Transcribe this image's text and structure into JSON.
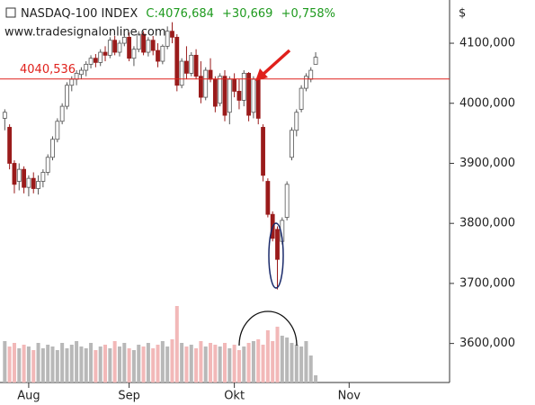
{
  "chart_data": {
    "type": "candlestick",
    "title": "NASDAQ-100 INDEX",
    "quote": "C:4076,684",
    "change": "+30,669",
    "change_pct": "+0,758%",
    "source": "www.tradesignalonline.com",
    "y_unit": "$",
    "up_color": "#ffffff",
    "down_color": "#9a1b1b",
    "up_volume_color": "#b8b8b8",
    "down_volume_color": "#f2b8b8",
    "hline": {
      "value": 4040.536,
      "label": "4040,536",
      "color": "#e0201b"
    },
    "xlim": [
      -1,
      93
    ],
    "xticks": [
      {
        "value": 5,
        "label": "Aug"
      },
      {
        "value": 26,
        "label": "Sep"
      },
      {
        "value": 48,
        "label": "Okt"
      },
      {
        "value": 72,
        "label": "Nov"
      }
    ],
    "ylim": [
      3535,
      4172
    ],
    "yticks": [
      {
        "value": 3600,
        "label": "3600,000"
      },
      {
        "value": 3700,
        "label": "3700,000"
      },
      {
        "value": 3800,
        "label": "3800,000"
      },
      {
        "value": 3900,
        "label": "3900,000"
      },
      {
        "value": 4000,
        "label": "4000,000"
      },
      {
        "value": 4100,
        "label": "4100,000"
      }
    ],
    "candles": [
      {
        "o": 3975,
        "h": 3990,
        "l": 3955,
        "c": 3985
      },
      {
        "o": 3960,
        "h": 3965,
        "l": 3890,
        "c": 3900
      },
      {
        "o": 3900,
        "h": 3905,
        "l": 3850,
        "c": 3865
      },
      {
        "o": 3870,
        "h": 3900,
        "l": 3855,
        "c": 3890
      },
      {
        "o": 3890,
        "h": 3895,
        "l": 3850,
        "c": 3860
      },
      {
        "o": 3860,
        "h": 3880,
        "l": 3845,
        "c": 3875
      },
      {
        "o": 3875,
        "h": 3885,
        "l": 3850,
        "c": 3858
      },
      {
        "o": 3858,
        "h": 3880,
        "l": 3848,
        "c": 3870
      },
      {
        "o": 3870,
        "h": 3890,
        "l": 3860,
        "c": 3885
      },
      {
        "o": 3885,
        "h": 3915,
        "l": 3880,
        "c": 3910
      },
      {
        "o": 3910,
        "h": 3945,
        "l": 3905,
        "c": 3940
      },
      {
        "o": 3940,
        "h": 3975,
        "l": 3935,
        "c": 3970
      },
      {
        "o": 3970,
        "h": 4000,
        "l": 3965,
        "c": 3995
      },
      {
        "o": 3995,
        "h": 4035,
        "l": 3990,
        "c": 4030
      },
      {
        "o": 4030,
        "h": 4045,
        "l": 4020,
        "c": 4040
      },
      {
        "o": 4040,
        "h": 4055,
        "l": 4030,
        "c": 4050
      },
      {
        "o": 4048,
        "h": 4060,
        "l": 4040,
        "c": 4055
      },
      {
        "o": 4055,
        "h": 4070,
        "l": 4045,
        "c": 4065
      },
      {
        "o": 4065,
        "h": 4080,
        "l": 4058,
        "c": 4075
      },
      {
        "o": 4075,
        "h": 4082,
        "l": 4060,
        "c": 4068
      },
      {
        "o": 4068,
        "h": 4090,
        "l": 4062,
        "c": 4085
      },
      {
        "o": 4085,
        "h": 4095,
        "l": 4070,
        "c": 4080
      },
      {
        "o": 4080,
        "h": 4110,
        "l": 4075,
        "c": 4105
      },
      {
        "o": 4105,
        "h": 4112,
        "l": 4080,
        "c": 4085
      },
      {
        "o": 4085,
        "h": 4105,
        "l": 4078,
        "c": 4100
      },
      {
        "o": 4100,
        "h": 4115,
        "l": 4095,
        "c": 4110
      },
      {
        "o": 4110,
        "h": 4118,
        "l": 4070,
        "c": 4075
      },
      {
        "o": 4075,
        "h": 4095,
        "l": 4062,
        "c": 4090
      },
      {
        "o": 4090,
        "h": 4120,
        "l": 4085,
        "c": 4115
      },
      {
        "o": 4115,
        "h": 4120,
        "l": 4080,
        "c": 4085
      },
      {
        "o": 4085,
        "h": 4110,
        "l": 4078,
        "c": 4105
      },
      {
        "o": 4105,
        "h": 4112,
        "l": 4080,
        "c": 4088
      },
      {
        "o": 4088,
        "h": 4100,
        "l": 4060,
        "c": 4070
      },
      {
        "o": 4070,
        "h": 4098,
        "l": 4065,
        "c": 4095
      },
      {
        "o": 4095,
        "h": 4128,
        "l": 4090,
        "c": 4120
      },
      {
        "o": 4120,
        "h": 4135,
        "l": 4100,
        "c": 4110
      },
      {
        "o": 4110,
        "h": 4115,
        "l": 4020,
        "c": 4030
      },
      {
        "o": 4030,
        "h": 4075,
        "l": 4025,
        "c": 4070
      },
      {
        "o": 4070,
        "h": 4095,
        "l": 4040,
        "c": 4050
      },
      {
        "o": 4050,
        "h": 4085,
        "l": 4045,
        "c": 4080
      },
      {
        "o": 4080,
        "h": 4090,
        "l": 4040,
        "c": 4045
      },
      {
        "o": 4045,
        "h": 4070,
        "l": 4000,
        "c": 4010
      },
      {
        "o": 4010,
        "h": 4060,
        "l": 4005,
        "c": 4055
      },
      {
        "o": 4055,
        "h": 4075,
        "l": 4035,
        "c": 4040
      },
      {
        "o": 4040,
        "h": 4045,
        "l": 3985,
        "c": 3995
      },
      {
        "o": 4000,
        "h": 4050,
        "l": 3995,
        "c": 4045
      },
      {
        "o": 4045,
        "h": 4055,
        "l": 3970,
        "c": 3980
      },
      {
        "o": 3985,
        "h": 4045,
        "l": 3965,
        "c": 4040
      },
      {
        "o": 4040,
        "h": 4050,
        "l": 4010,
        "c": 4020
      },
      {
        "o": 4020,
        "h": 4040,
        "l": 3990,
        "c": 4005
      },
      {
        "o": 4005,
        "h": 4055,
        "l": 3995,
        "c": 4050
      },
      {
        "o": 4050,
        "h": 4052,
        "l": 3970,
        "c": 3980
      },
      {
        "o": 3985,
        "h": 4045,
        "l": 3975,
        "c": 4040
      },
      {
        "o": 4040,
        "h": 4045,
        "l": 3965,
        "c": 3975
      },
      {
        "o": 3960,
        "h": 3965,
        "l": 3870,
        "c": 3880
      },
      {
        "o": 3870,
        "h": 3875,
        "l": 3810,
        "c": 3815
      },
      {
        "o": 3815,
        "h": 3820,
        "l": 3770,
        "c": 3775
      },
      {
        "o": 3790,
        "h": 3795,
        "l": 3690,
        "c": 3740
      },
      {
        "o": 3770,
        "h": 3810,
        "l": 3765,
        "c": 3805
      },
      {
        "o": 3810,
        "h": 3870,
        "l": 3805,
        "c": 3865
      },
      {
        "o": 3910,
        "h": 3960,
        "l": 3905,
        "c": 3955
      },
      {
        "o": 3955,
        "h": 3990,
        "l": 3945,
        "c": 3985
      },
      {
        "o": 3990,
        "h": 4030,
        "l": 3985,
        "c": 4025
      },
      {
        "o": 4025,
        "h": 4050,
        "l": 4020,
        "c": 4045
      },
      {
        "o": 4040,
        "h": 4060,
        "l": 4035,
        "c": 4055
      },
      {
        "o": 4065,
        "h": 4085,
        "l": 4065,
        "c": 4076.684
      }
    ],
    "volume": [
      46,
      40,
      44,
      38,
      42,
      40,
      36,
      44,
      38,
      42,
      40,
      36,
      44,
      38,
      42,
      46,
      40,
      38,
      44,
      36,
      40,
      42,
      38,
      46,
      40,
      44,
      38,
      36,
      42,
      40,
      44,
      38,
      42,
      46,
      40,
      48,
      85,
      44,
      40,
      42,
      38,
      46,
      40,
      44,
      42,
      40,
      44,
      38,
      42,
      36,
      40,
      44,
      46,
      48,
      42,
      58,
      46,
      62,
      52,
      50,
      44,
      42,
      40,
      46,
      30,
      8
    ]
  }
}
